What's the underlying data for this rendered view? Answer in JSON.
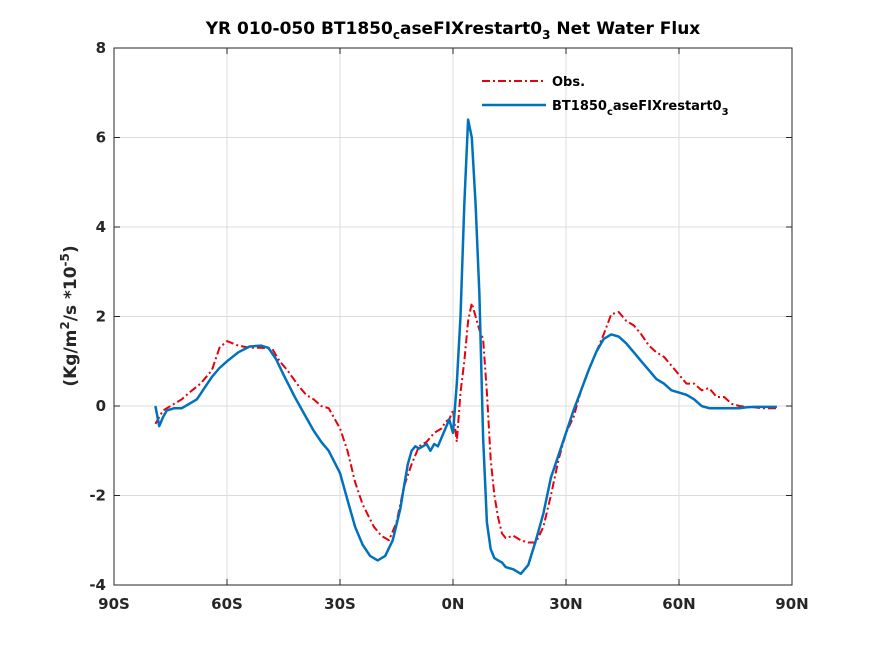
{
  "chart_data": {
    "type": "line",
    "title": {
      "main": "YR 010-050 BT1850",
      "sub1": "c",
      "mid": "aseFIXrestart0",
      "sub2": "3",
      "tail": "  Net Water Flux"
    },
    "ylabel": {
      "pre": "(Kg/m",
      "sup1": "2",
      "mid": "/s *10",
      "sup2": "-5",
      "post": ")"
    },
    "xlim": [
      -90,
      90
    ],
    "ylim": [
      -4,
      8
    ],
    "xticks": [
      -90,
      -60,
      -30,
      0,
      30,
      60,
      90
    ],
    "xtick_labels": [
      "90S",
      "60S",
      "30S",
      "0N",
      "30N",
      "60N",
      "90N"
    ],
    "yticks": [
      -4,
      -2,
      0,
      2,
      4,
      6,
      8
    ],
    "ytick_labels": [
      "-4",
      "-2",
      "0",
      "2",
      "4",
      "6",
      "8"
    ],
    "grid": true,
    "legend_position": "top-right",
    "series": [
      {
        "name": "Obs.",
        "color": "#e8000b",
        "style": "dash-dot",
        "x": [
          -79,
          -77,
          -75,
          -72,
          -70,
          -67,
          -64,
          -62,
          -60,
          -57,
          -54,
          -51,
          -48,
          -46,
          -44,
          -41,
          -39,
          -37,
          -35,
          -33,
          -30,
          -28,
          -26,
          -24,
          -21,
          -19,
          -17,
          -15,
          -13,
          -11,
          -9,
          -7,
          -5,
          -3,
          -2,
          -1,
          0,
          1,
          2,
          3,
          4,
          5,
          6,
          7,
          8,
          9,
          10,
          11,
          12,
          13,
          14,
          16,
          18,
          20,
          22,
          24,
          26,
          28,
          30,
          32,
          34,
          36,
          38,
          40,
          42,
          44,
          46,
          48,
          50,
          52,
          54,
          56,
          58,
          60,
          62,
          64,
          66,
          68,
          70,
          72,
          74,
          76,
          78,
          80,
          82,
          84,
          86
        ],
        "y": [
          -0.4,
          -0.1,
          0.0,
          0.15,
          0.3,
          0.5,
          0.8,
          1.3,
          1.45,
          1.35,
          1.3,
          1.3,
          1.28,
          1.0,
          0.8,
          0.45,
          0.25,
          0.15,
          0.0,
          -0.05,
          -0.5,
          -1.0,
          -1.7,
          -2.2,
          -2.7,
          -2.9,
          -3.0,
          -2.6,
          -1.8,
          -1.3,
          -0.9,
          -0.8,
          -0.6,
          -0.5,
          -0.35,
          -0.3,
          -0.1,
          -0.8,
          0.3,
          1.0,
          1.9,
          2.3,
          2.0,
          1.7,
          1.5,
          0.3,
          -1.2,
          -2.0,
          -2.5,
          -2.85,
          -2.95,
          -2.9,
          -3.0,
          -3.05,
          -3.05,
          -2.7,
          -2.0,
          -1.2,
          -0.6,
          -0.25,
          0.35,
          0.8,
          1.2,
          1.6,
          2.05,
          2.1,
          1.9,
          1.8,
          1.6,
          1.35,
          1.2,
          1.1,
          0.9,
          0.7,
          0.5,
          0.5,
          0.35,
          0.4,
          0.2,
          0.2,
          0.05,
          0.0,
          -0.02,
          -0.03,
          -0.05,
          -0.05,
          -0.05
        ]
      },
      {
        "name": "BT1850caseFIXrestart03",
        "color": "#0072bd",
        "style": "solid",
        "x": [
          -79,
          -78,
          -77,
          -76,
          -74,
          -72,
          -70,
          -68,
          -66,
          -64,
          -62,
          -60,
          -57,
          -54,
          -51,
          -49,
          -47,
          -45,
          -42,
          -40,
          -37,
          -35,
          -33,
          -30,
          -28,
          -26,
          -24,
          -22,
          -20,
          -18,
          -16,
          -14,
          -13,
          -12,
          -11,
          -10,
          -9,
          -8,
          -7,
          -6,
          -5,
          -4,
          -3,
          -2,
          -1,
          0,
          1,
          2,
          3,
          4,
          5,
          6,
          7,
          8,
          9,
          10,
          11,
          12,
          13,
          14,
          16,
          18,
          20,
          22,
          24,
          26,
          28,
          30,
          32,
          34,
          36,
          38,
          40,
          42,
          44,
          46,
          48,
          50,
          52,
          54,
          56,
          58,
          60,
          62,
          64,
          66,
          68,
          70,
          72,
          74,
          76,
          78,
          80,
          82,
          84,
          86
        ],
        "y": [
          0.0,
          -0.45,
          -0.25,
          -0.1,
          -0.05,
          -0.05,
          0.05,
          0.15,
          0.4,
          0.65,
          0.85,
          1.0,
          1.2,
          1.33,
          1.35,
          1.3,
          1.05,
          0.7,
          0.2,
          -0.1,
          -0.55,
          -0.8,
          -1.0,
          -1.5,
          -2.1,
          -2.7,
          -3.1,
          -3.35,
          -3.45,
          -3.35,
          -3.0,
          -2.3,
          -1.8,
          -1.3,
          -1.0,
          -0.9,
          -0.95,
          -0.9,
          -0.85,
          -1.0,
          -0.85,
          -0.9,
          -0.7,
          -0.5,
          -0.3,
          -0.6,
          0.5,
          2.0,
          4.5,
          6.4,
          6.0,
          4.5,
          2.5,
          -0.7,
          -2.6,
          -3.2,
          -3.4,
          -3.45,
          -3.5,
          -3.6,
          -3.65,
          -3.75,
          -3.55,
          -3.0,
          -2.4,
          -1.6,
          -1.1,
          -0.6,
          -0.1,
          0.35,
          0.8,
          1.2,
          1.5,
          1.6,
          1.55,
          1.4,
          1.2,
          1.0,
          0.8,
          0.6,
          0.5,
          0.35,
          0.3,
          0.25,
          0.15,
          0.0,
          -0.05,
          -0.05,
          -0.05,
          -0.05,
          -0.05,
          -0.03,
          -0.02,
          -0.02,
          -0.02,
          -0.02
        ]
      }
    ],
    "legend_labels": [
      {
        "main": "Obs.",
        "sub": "",
        "rest": "",
        "sub2": ""
      },
      {
        "main": "BT1850",
        "sub": "c",
        "rest": "aseFIXrestart0",
        "sub2": "3"
      }
    ]
  }
}
